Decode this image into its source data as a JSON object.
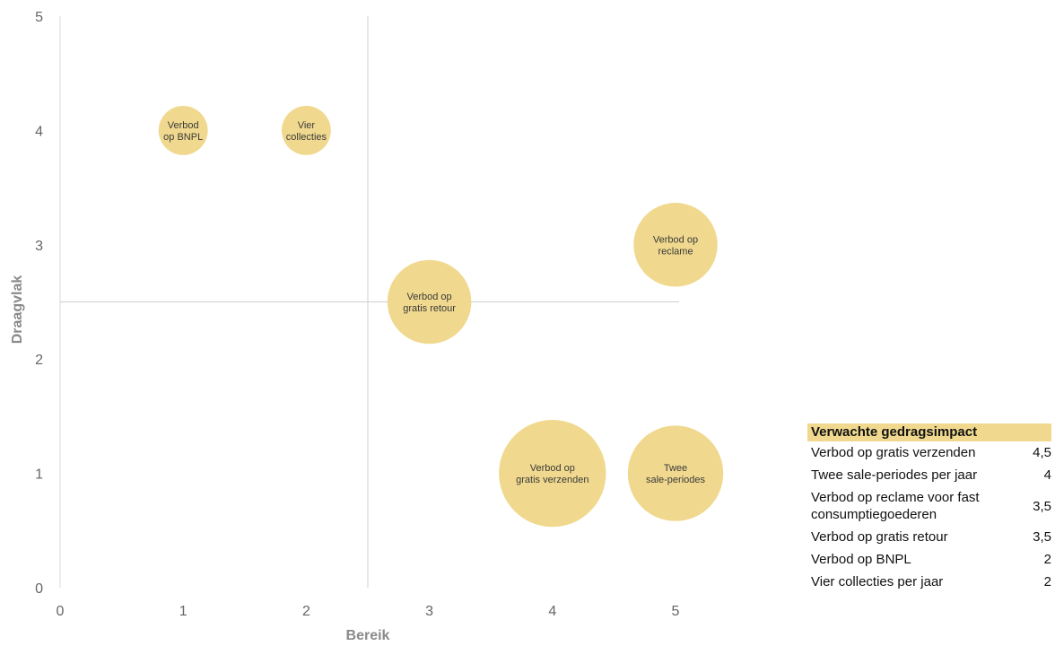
{
  "chart_data": {
    "type": "bubble",
    "xlabel": "Bereik",
    "ylabel": "Draagvlak",
    "xlim": [
      0,
      5
    ],
    "ylim": [
      0,
      5
    ],
    "xticks": [
      "0",
      "1",
      "2",
      "3",
      "4",
      "5"
    ],
    "yticks": [
      "0",
      "1",
      "2",
      "3",
      "4",
      "5"
    ],
    "quadrant_lines": {
      "x": 2.5,
      "y": 2.5
    },
    "bubble_color": "#f0d98e",
    "points": [
      {
        "label": [
          "Verbod",
          "op BNPL"
        ],
        "x": 1,
        "y": 4,
        "size": 2
      },
      {
        "label": [
          "Vier",
          "collecties"
        ],
        "x": 2,
        "y": 4,
        "size": 2
      },
      {
        "label": [
          "Verbod op",
          "gratis retour"
        ],
        "x": 3,
        "y": 2.5,
        "size": 3.5
      },
      {
        "label": [
          "Verbod op",
          "reclame"
        ],
        "x": 5,
        "y": 3,
        "size": 3.5
      },
      {
        "label": [
          "Verbod op",
          "gratis verzenden"
        ],
        "x": 4,
        "y": 1,
        "size": 4.5
      },
      {
        "label": [
          "Twee",
          "sale-periodes"
        ],
        "x": 5,
        "y": 1,
        "size": 4
      }
    ]
  },
  "legend": {
    "title": "Verwachte gedragsimpact",
    "rows": [
      {
        "name": "Verbod op gratis verzenden",
        "value": "4,5"
      },
      {
        "name": "Twee sale-periodes per jaar",
        "value": "4"
      },
      {
        "name": "Verbod op reclame voor fast consumptiegoederen",
        "value": "3,5"
      },
      {
        "name": "Verbod op gratis retour",
        "value": "3,5"
      },
      {
        "name": "Verbod op BNPL",
        "value": "2"
      },
      {
        "name": "Vier collecties per jaar",
        "value": "2"
      }
    ]
  }
}
